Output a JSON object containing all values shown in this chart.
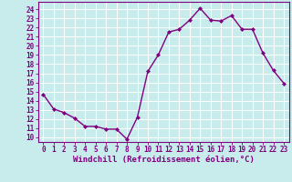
{
  "x": [
    0,
    1,
    2,
    3,
    4,
    5,
    6,
    7,
    8,
    9,
    10,
    11,
    12,
    13,
    14,
    15,
    16,
    17,
    18,
    19,
    20,
    21,
    22,
    23
  ],
  "y": [
    14.7,
    13.1,
    12.7,
    12.1,
    11.2,
    11.2,
    10.9,
    10.9,
    9.8,
    12.2,
    17.2,
    19.0,
    21.5,
    21.8,
    22.8,
    24.1,
    22.8,
    22.7,
    23.3,
    21.8,
    21.8,
    19.2,
    17.3,
    15.9
  ],
  "line_color": "#800080",
  "marker": "D",
  "marker_size": 2.0,
  "bg_color": "#c8ecec",
  "grid_color": "#ffffff",
  "xlabel": "Windchill (Refroidissement éolien,°C)",
  "xlabel_fontsize": 6.5,
  "ylabel_ticks": [
    10,
    11,
    12,
    13,
    14,
    15,
    16,
    17,
    18,
    19,
    20,
    21,
    22,
    23,
    24
  ],
  "xlabel_ticks": [
    0,
    1,
    2,
    3,
    4,
    5,
    6,
    7,
    8,
    9,
    10,
    11,
    12,
    13,
    14,
    15,
    16,
    17,
    18,
    19,
    20,
    21,
    22,
    23
  ],
  "ylim": [
    9.5,
    24.8
  ],
  "xlim": [
    -0.5,
    23.5
  ],
  "tick_fontsize": 5.5,
  "line_width": 1.0
}
